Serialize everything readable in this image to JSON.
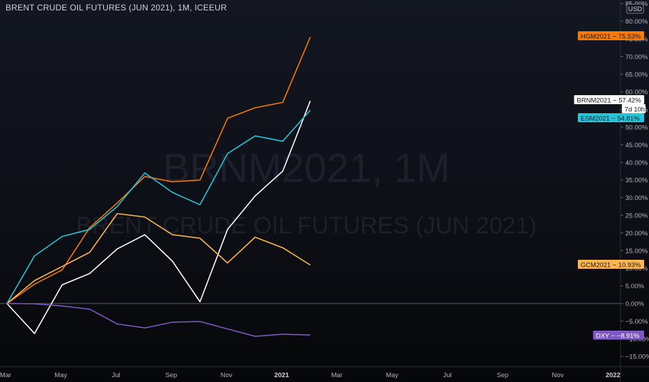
{
  "header": {
    "title": "BRENT CRUDE OIL FUTURES (JUN 2021), 1M, ICEEUR",
    "currency": "USD"
  },
  "watermark": {
    "line1": "BRNM2021, 1M",
    "line2": "BRENT CRUDE OIL FUTURES (JUN 2021)"
  },
  "countdown": "7d 10h",
  "chart_data": {
    "type": "line",
    "x": [
      "Mar 2020",
      "Apr 2020",
      "May 2020",
      "Jun 2020",
      "Jul 2020",
      "Aug 2020",
      "Sep 2020",
      "Oct 2020",
      "Nov 2020",
      "Dec 2020",
      "Jan 2021",
      "Feb 2021"
    ],
    "x_axis_labels": [
      "Mar",
      "May",
      "Jul",
      "Sep",
      "Nov",
      "2021",
      "Mar",
      "May",
      "Jul",
      "Sep",
      "Nov",
      "2022"
    ],
    "y_ticks": [
      -15,
      -10,
      -5,
      0,
      5,
      10,
      15,
      20,
      25,
      30,
      35,
      40,
      45,
      50,
      55,
      60,
      65,
      70,
      75,
      80,
      85
    ],
    "ylim": [
      -16.5,
      86
    ],
    "y_unit": "%",
    "grid": false,
    "series": [
      {
        "name": "HGM2021",
        "color": "#f57c00",
        "label_color": "#f57c00",
        "label_text_color": "#131722",
        "values": [
          0,
          5.5,
          9.5,
          21.5,
          28.5,
          36,
          34.5,
          35,
          52.5,
          55.5,
          57,
          75.53
        ]
      },
      {
        "name": "BRNM2021",
        "color": "#ffffff",
        "label_color": "#ffffff",
        "label_text_color": "#131722",
        "values": [
          0,
          -8.5,
          5.3,
          8.5,
          15.5,
          19.5,
          12,
          0.5,
          21,
          30.5,
          37.5,
          57.42
        ]
      },
      {
        "name": "ESM2021",
        "color": "#26c6da",
        "label_color": "#26c6da",
        "label_text_color": "#131722",
        "values": [
          0,
          13.5,
          19,
          21,
          27.5,
          37,
          31.5,
          28,
          42.5,
          47.5,
          46,
          54.81
        ]
      },
      {
        "name": "GCM2021",
        "color": "#ffb74d",
        "label_color": "#ffb74d",
        "label_text_color": "#131722",
        "values": [
          0,
          6.5,
          10.5,
          14.5,
          25.5,
          24.5,
          19.5,
          18.5,
          11.5,
          18.8,
          15.8,
          10.93
        ]
      },
      {
        "name": "DXY",
        "color": "#7e57c2",
        "label_color": "#7e57c2",
        "label_text_color": "#ffffff",
        "values": [
          0,
          -0.1,
          -0.7,
          -1.6,
          -5.8,
          -6.9,
          -5.3,
          -5.1,
          -7.2,
          -9.3,
          -8.7,
          -8.91
        ]
      }
    ],
    "value_labels": [
      "75.53%",
      "57.42%",
      "54.81%",
      "10.93%",
      "−8.91%"
    ]
  }
}
